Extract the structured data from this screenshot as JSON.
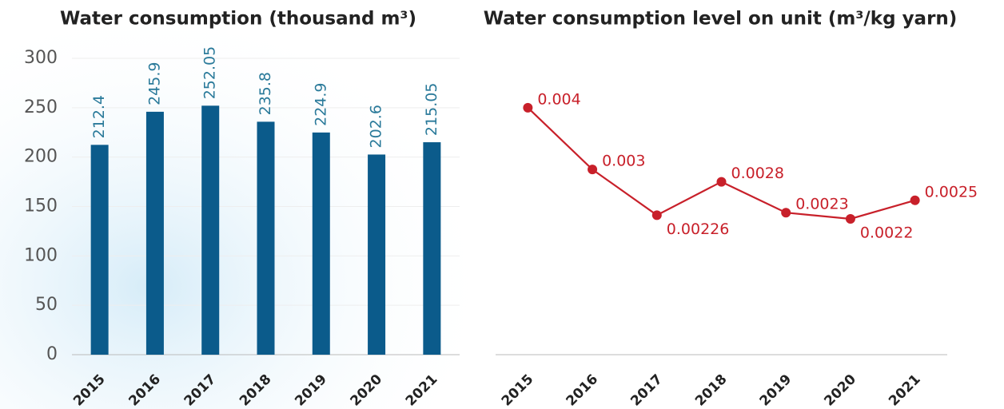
{
  "chart_data": [
    {
      "type": "bar",
      "title": "Water consumption (thousand m³)",
      "categories": [
        "2015",
        "2016",
        "2017",
        "2018",
        "2019",
        "2020",
        "2021"
      ],
      "values": [
        212.4,
        245.9,
        252.05,
        235.8,
        224.9,
        202.6,
        215.05
      ],
      "color": "#0b5b8b",
      "ylim": [
        0,
        300
      ],
      "yticks": [
        0,
        50,
        100,
        150,
        200,
        250,
        300
      ],
      "grid": true
    },
    {
      "type": "line",
      "title": "Water consumption level on unit (m³/kg yarn)",
      "categories": [
        "2015",
        "2016",
        "2017",
        "2018",
        "2019",
        "2020",
        "2021"
      ],
      "values": [
        0.004,
        0.003,
        0.00226,
        0.0028,
        0.0023,
        0.0022,
        0.0025
      ],
      "color": "#c8202a",
      "ylim": [
        0,
        0.0048
      ]
    }
  ]
}
